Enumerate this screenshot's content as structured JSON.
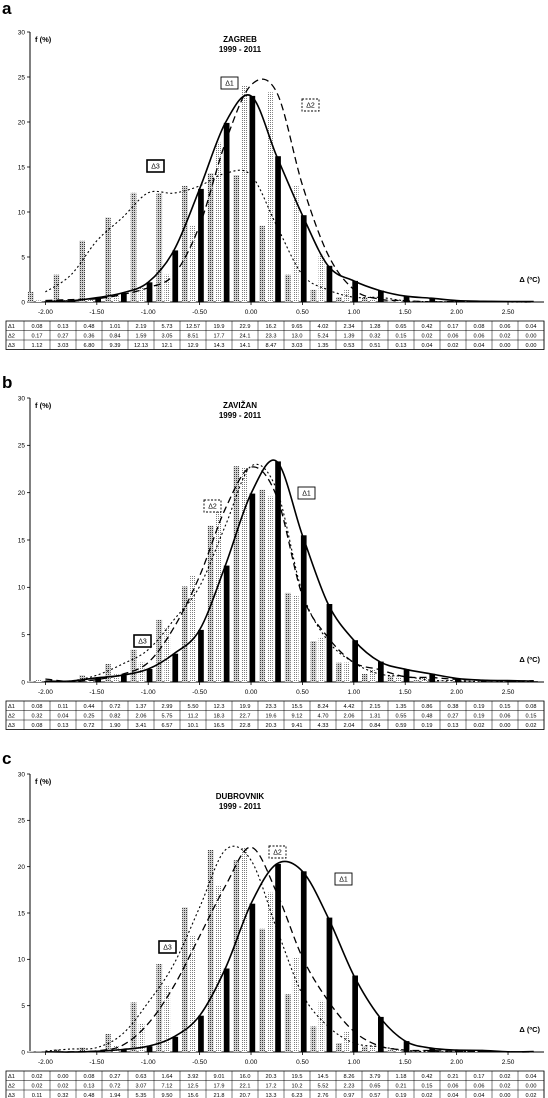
{
  "style": {
    "d1_color": "#000000",
    "d2_color": "#c8c8c8",
    "d3_color": "#a8a8a8",
    "pattern": "fine-dot screen"
  },
  "axes_common": {
    "y_label": "f (%)",
    "x_label": "Δ (ºC)",
    "y_ticks": [
      "0",
      "5",
      "10",
      "15",
      "20",
      "25",
      "30"
    ],
    "x_ticks": [
      "-2.00",
      "-1.50",
      "-1.00",
      "-0.50",
      "0.00",
      "0.50",
      "1.00",
      "1.50",
      "2.00",
      "2.50"
    ],
    "xlim": [
      -2.15,
      2.85
    ],
    "ylim": [
      0,
      30
    ],
    "legend_labels": [
      "Δ1",
      "Δ2",
      "Δ3"
    ],
    "table_row_labels": [
      "Δ1",
      "Δ2",
      "Δ3"
    ]
  },
  "chart_data": [
    {
      "type": "bar",
      "panel_letter": "a",
      "title": "ZAGREB",
      "subtitle": "1999 - 2011",
      "x": [
        -2.0,
        -1.75,
        -1.5,
        -1.25,
        -1.0,
        -0.75,
        -0.5,
        -0.25,
        0.0,
        0.25,
        0.5,
        0.75,
        1.0,
        1.25,
        1.5,
        1.75,
        2.0,
        2.25,
        2.5,
        2.75
      ],
      "series": [
        {
          "name": "Δ1",
          "values": [
            0.08,
            0.13,
            0.48,
            1.01,
            2.19,
            5.73,
            12.57,
            19.9,
            22.9,
            16.2,
            9.65,
            4.02,
            2.34,
            1.28,
            0.65,
            0.42,
            0.17,
            0.08,
            0.06,
            0.04
          ],
          "table": [
            "0.08",
            "0.13",
            "0.48",
            "1.01",
            "2.19",
            "5.73",
            "12.57",
            "19.9",
            "22.9",
            "16.2",
            "9.65",
            "4.02",
            "2.34",
            "1.28",
            "0.65",
            "0.42",
            "0.17",
            "0.08",
            "0.06",
            "0.04"
          ]
        },
        {
          "name": "Δ2",
          "values": [
            0.17,
            0.27,
            0.36,
            0.84,
            1.59,
            3.05,
            8.51,
            17.7,
            24.1,
            23.3,
            13.0,
            5.24,
            1.39,
            0.32,
            0.15,
            0.02,
            0.06,
            0.06,
            0.02,
            0.0
          ],
          "table": [
            "0.17",
            "0.27",
            "0.36",
            "0.84",
            "1.59",
            "3.05",
            "8.51",
            "17.7",
            "24.1",
            "23.3",
            "13.0",
            "5.24",
            "1.39",
            "0.32",
            "0.15",
            "0.02",
            "0.06",
            "0.06",
            "0.02",
            "0.00"
          ]
        },
        {
          "name": "Δ3",
          "values": [
            1.12,
            3.03,
            6.8,
            9.39,
            12.13,
            12.1,
            12.9,
            14.3,
            14.1,
            8.47,
            3.03,
            1.35,
            0.53,
            0.51,
            0.13,
            0.04,
            0.02,
            0.04,
            0.0,
            0.0
          ],
          "table": [
            "1.12",
            "3.03",
            "6.80",
            "9.39",
            "12.13",
            "12.1",
            "12.9",
            "14.3",
            "14.1",
            "8.47",
            "3.03",
            "1.35",
            "0.53",
            "0.51",
            "0.13",
            "0.04",
            "0.02",
            "0.04",
            "0.00",
            "0.00"
          ]
        }
      ]
    },
    {
      "type": "bar",
      "panel_letter": "b",
      "title": "ZAVIŽAN",
      "subtitle": "1999 - 2011",
      "x": [
        -2.0,
        -1.75,
        -1.5,
        -1.25,
        -1.0,
        -0.75,
        -0.5,
        -0.25,
        0.0,
        0.25,
        0.5,
        0.75,
        1.0,
        1.25,
        1.5,
        1.75,
        2.0,
        2.25,
        2.5,
        2.75
      ],
      "series": [
        {
          "name": "Δ1",
          "values": [
            0.08,
            0.11,
            0.44,
            0.72,
            1.37,
            2.99,
            5.5,
            12.3,
            19.9,
            23.3,
            15.5,
            8.24,
            4.42,
            2.15,
            1.35,
            0.86,
            0.38,
            0.19,
            0.15,
            0.08
          ],
          "table": [
            "0.08",
            "0.11",
            "0.44",
            "0.72",
            "1.37",
            "2.99",
            "5.50",
            "12.3",
            "19.9",
            "23.3",
            "15.5",
            "8.24",
            "4.42",
            "2.15",
            "1.35",
            "0.86",
            "0.38",
            "0.19",
            "0.15",
            "0.08"
          ]
        },
        {
          "name": "Δ2",
          "values": [
            0.32,
            0.04,
            0.25,
            0.82,
            2.06,
            5.75,
            11.2,
            18.3,
            22.7,
            19.6,
            9.12,
            4.7,
            2.06,
            1.31,
            0.55,
            0.48,
            0.27,
            0.19,
            0.06,
            0.15
          ],
          "table": [
            "0.32",
            "0.04",
            "0.25",
            "0.82",
            "2.06",
            "5.75",
            "11.2",
            "18.3",
            "22.7",
            "19.6",
            "9.12",
            "4.70",
            "2.06",
            "1.31",
            "0.55",
            "0.48",
            "0.27",
            "0.19",
            "0.06",
            "0.15"
          ]
        },
        {
          "name": "Δ3",
          "values": [
            0.08,
            0.13,
            0.72,
            1.9,
            3.41,
            6.57,
            10.1,
            16.5,
            22.8,
            20.3,
            9.41,
            4.33,
            2.04,
            0.84,
            0.59,
            0.19,
            0.13,
            0.02,
            0.0,
            0.02
          ],
          "table": [
            "0.08",
            "0.13",
            "0.72",
            "1.90",
            "3.41",
            "6.57",
            "10.1",
            "16.5",
            "22.8",
            "20.3",
            "9.41",
            "4.33",
            "2.04",
            "0.84",
            "0.59",
            "0.19",
            "0.13",
            "0.02",
            "0.00",
            "0.02"
          ]
        }
      ]
    },
    {
      "type": "bar",
      "panel_letter": "c",
      "title": "DUBROVNIK",
      "subtitle": "1999 - 2011",
      "x": [
        -2.0,
        -1.75,
        -1.5,
        -1.25,
        -1.0,
        -0.75,
        -0.5,
        -0.25,
        0.0,
        0.25,
        0.5,
        0.75,
        1.0,
        1.25,
        1.5,
        1.75,
        2.0,
        2.25,
        2.5,
        2.75
      ],
      "series": [
        {
          "name": "Δ1",
          "values": [
            0.02,
            0.0,
            0.08,
            0.27,
            0.63,
            1.64,
            3.92,
            9.01,
            16.0,
            20.3,
            19.5,
            14.5,
            8.26,
            3.79,
            1.18,
            0.42,
            0.21,
            0.17,
            0.02,
            0.04
          ],
          "table": [
            "0.02",
            "0.00",
            "0.08",
            "0.27",
            "0.63",
            "1.64",
            "3.92",
            "9.01",
            "16.0",
            "20.3",
            "19.5",
            "14.5",
            "8.26",
            "3.79",
            "1.18",
            "0.42",
            "0.21",
            "0.17",
            "0.02",
            "0.04"
          ]
        },
        {
          "name": "Δ2",
          "values": [
            0.02,
            0.02,
            0.13,
            0.72,
            3.07,
            7.12,
            12.5,
            17.9,
            22.1,
            17.2,
            10.2,
            5.52,
            2.23,
            0.65,
            0.21,
            0.15,
            0.06,
            0.06,
            0.02,
            0.0
          ],
          "table": [
            "0.02",
            "0.02",
            "0.13",
            "0.72",
            "3.07",
            "7.12",
            "12.5",
            "17.9",
            "22.1",
            "17.2",
            "10.2",
            "5.52",
            "2.23",
            "0.65",
            "0.21",
            "0.15",
            "0.06",
            "0.06",
            "0.02",
            "0.00"
          ]
        },
        {
          "name": "Δ3",
          "values": [
            0.11,
            0.32,
            0.48,
            1.94,
            5.35,
            9.5,
            15.6,
            21.8,
            20.7,
            13.3,
            6.23,
            2.76,
            0.97,
            0.57,
            0.19,
            0.02,
            0.04,
            0.04,
            0.0,
            0.02
          ],
          "table": [
            "0.11",
            "0.32",
            "0.48",
            "1.94",
            "5.35",
            "9.50",
            "15.6",
            "21.8",
            "20.7",
            "13.3",
            "6.23",
            "2.76",
            "0.97",
            "0.57",
            "0.19",
            "0.02",
            "0.04",
            "0.04",
            "0.00",
            "0.02"
          ]
        }
      ]
    }
  ]
}
